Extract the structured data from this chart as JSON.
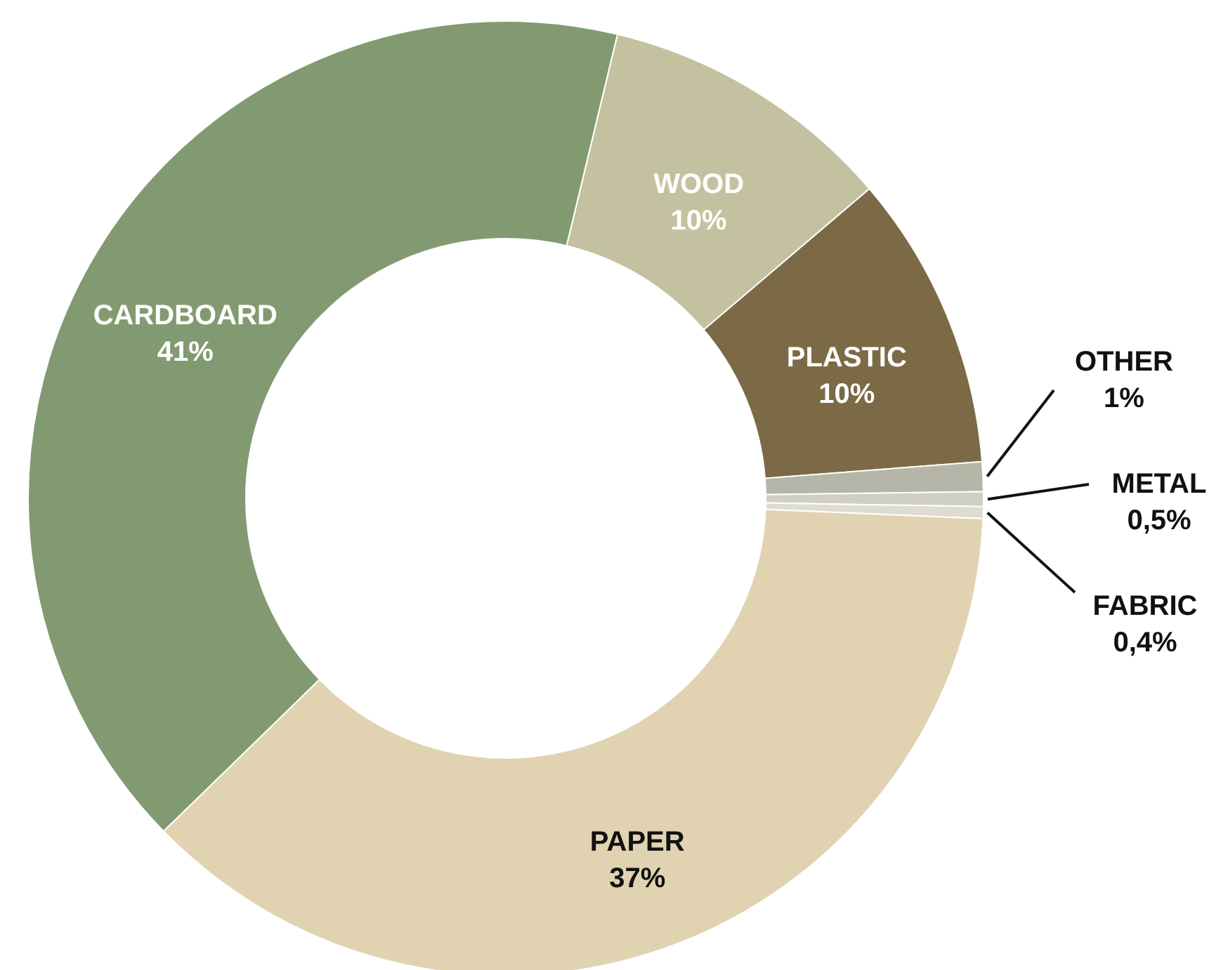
{
  "chart_data": {
    "type": "donut",
    "categories": [
      "WOOD",
      "PLASTIC",
      "OTHER",
      "METAL",
      "FABRIC",
      "PAPER",
      "CARDBOARD"
    ],
    "values": [
      10,
      10,
      1,
      0.5,
      0.4,
      37,
      41
    ],
    "value_labels": [
      "10%",
      "10%",
      "1%",
      "0,5%",
      "0,4%",
      "37%",
      "41%"
    ],
    "colors": [
      "#c4c1a0",
      "#7b6a45",
      "#b5b5a8",
      "#cfcfc4",
      "#dedcd2",
      "#e1d3b1",
      "#829a72"
    ]
  }
}
